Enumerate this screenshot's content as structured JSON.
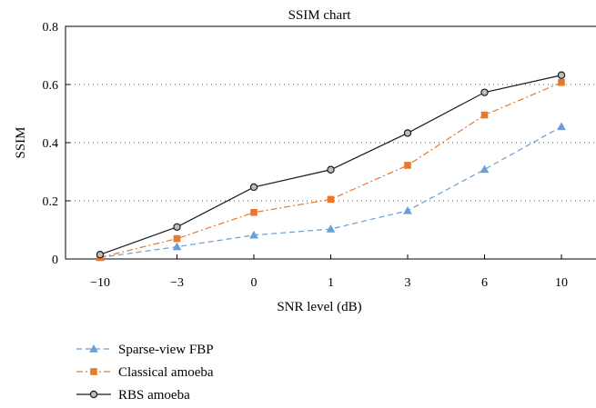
{
  "chart_data": {
    "type": "line",
    "title": "SSIM chart",
    "xlabel": "SNR level (dB)",
    "ylabel": "SSIM",
    "categories": [
      "−10",
      "−3",
      "0",
      "1",
      "3",
      "6",
      "10"
    ],
    "ylim": [
      0,
      0.8
    ],
    "yticks": [
      0,
      0.2,
      0.4,
      0.6,
      0.8
    ],
    "ytick_labels": [
      "0",
      "0.2",
      "0.4",
      "0.6",
      "0.8"
    ],
    "grid": "horizontal dotted",
    "legend_position": "bottom-left",
    "series": [
      {
        "name": "Sparse-view FBP",
        "values": [
          0.005,
          0.042,
          0.082,
          0.103,
          0.166,
          0.308,
          0.455
        ],
        "color": "#6a9fd4",
        "line_style": "dashed",
        "marker": "triangle"
      },
      {
        "name": "Classical amoeba",
        "values": [
          0.005,
          0.07,
          0.16,
          0.205,
          0.322,
          0.495,
          0.607
        ],
        "color": "#e8792b",
        "line_style": "dash-dot",
        "marker": "square"
      },
      {
        "name": "RBS amoeba",
        "values": [
          0.015,
          0.11,
          0.247,
          0.307,
          0.433,
          0.573,
          0.632
        ],
        "color": "#1a1a1a",
        "line_style": "solid",
        "marker": "circle"
      }
    ]
  }
}
